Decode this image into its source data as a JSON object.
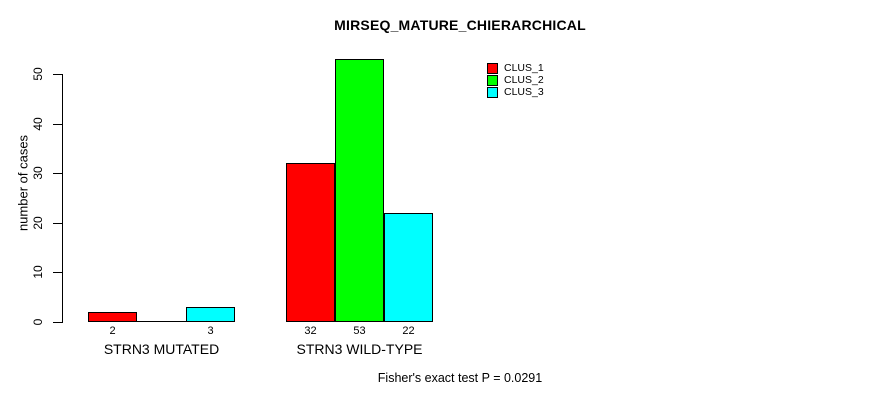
{
  "chart_data": {
    "type": "bar",
    "title": "MIRSEQ_MATURE_CHIERARCHICAL",
    "xlabel": "",
    "ylabel": "number of cases",
    "ylim": [
      0,
      53
    ],
    "yticks": [
      0,
      10,
      20,
      30,
      40,
      50
    ],
    "grid": false,
    "legend_position": "top-right",
    "background_color": "#ffffff",
    "categories": [
      "STRN3 MUTATED",
      "STRN3 WILD-TYPE"
    ],
    "series": [
      {
        "name": "CLUS_1",
        "color": "#ff0000",
        "values": [
          2,
          32
        ]
      },
      {
        "name": "CLUS_2",
        "color": "#00ff00",
        "values": [
          0,
          53
        ]
      },
      {
        "name": "CLUS_3",
        "color": "#00ffff",
        "values": [
          3,
          22
        ]
      }
    ],
    "bar_value_labels": [
      [
        "2",
        "",
        "3"
      ],
      [
        "32",
        "53",
        "22"
      ]
    ],
    "annotation": "Fisher's exact test P = 0.0291"
  }
}
